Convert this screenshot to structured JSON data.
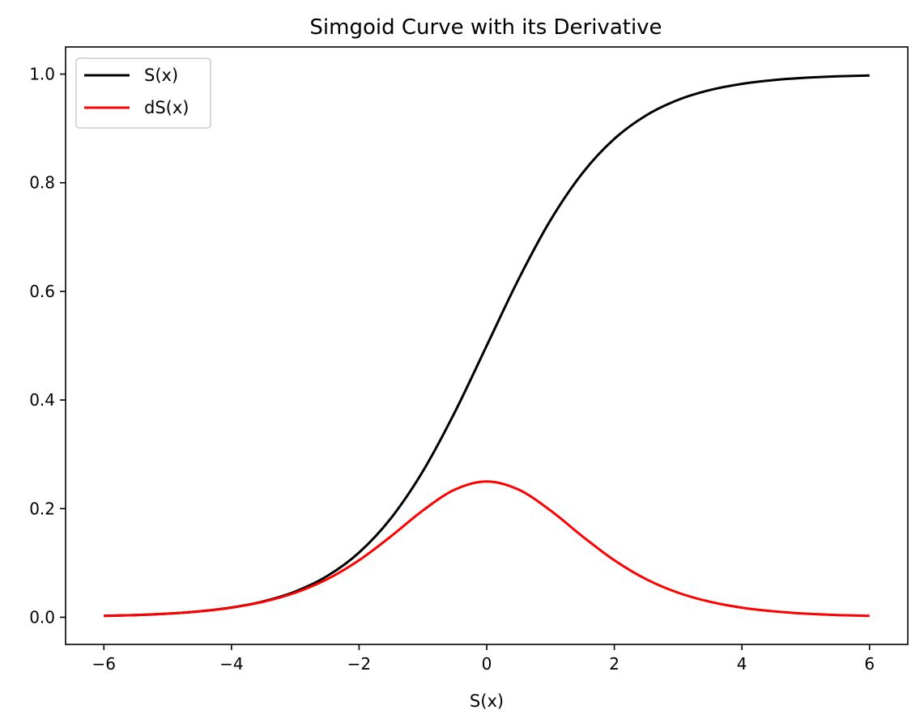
{
  "chart_data": {
    "type": "line",
    "title": "Simgoid Curve with its Derivative",
    "xlabel": "S(x)",
    "ylabel": "",
    "xlim": [
      -6.6,
      6.6
    ],
    "ylim": [
      -0.05,
      1.05
    ],
    "xticks": [
      -6,
      -4,
      -2,
      0,
      2,
      4,
      6
    ],
    "xtick_labels": [
      "−6",
      "−4",
      "−2",
      "0",
      "2",
      "4",
      "6"
    ],
    "yticks": [
      0.0,
      0.2,
      0.4,
      0.6,
      0.8,
      1.0
    ],
    "ytick_labels": [
      "0.0",
      "0.2",
      "0.4",
      "0.6",
      "0.8",
      "1.0"
    ],
    "grid": false,
    "legend_position": "top-left",
    "x": [
      -6,
      -5.5,
      -5,
      -4.5,
      -4,
      -3.5,
      -3,
      -2.5,
      -2,
      -1.5,
      -1,
      -0.5,
      0,
      0.5,
      1,
      1.5,
      2,
      2.5,
      3,
      3.5,
      4,
      4.5,
      5,
      5.5,
      6
    ],
    "series": [
      {
        "name": "S(x)",
        "color": "#000000",
        "values": [
          0.0025,
          0.0041,
          0.0067,
          0.011,
          0.018,
          0.0293,
          0.0474,
          0.0759,
          0.1192,
          0.1824,
          0.2689,
          0.3775,
          0.5,
          0.6225,
          0.7311,
          0.8176,
          0.8808,
          0.9241,
          0.9526,
          0.9707,
          0.982,
          0.989,
          0.9933,
          0.9959,
          0.9975
        ]
      },
      {
        "name": "dS(x)",
        "color": "#ff0000",
        "values": [
          0.0025,
          0.0041,
          0.0066,
          0.0109,
          0.0177,
          0.0285,
          0.0452,
          0.0701,
          0.105,
          0.1491,
          0.1966,
          0.235,
          0.25,
          0.235,
          0.1966,
          0.1491,
          0.105,
          0.0701,
          0.0452,
          0.0285,
          0.0177,
          0.0109,
          0.0066,
          0.0041,
          0.0025
        ]
      }
    ]
  }
}
